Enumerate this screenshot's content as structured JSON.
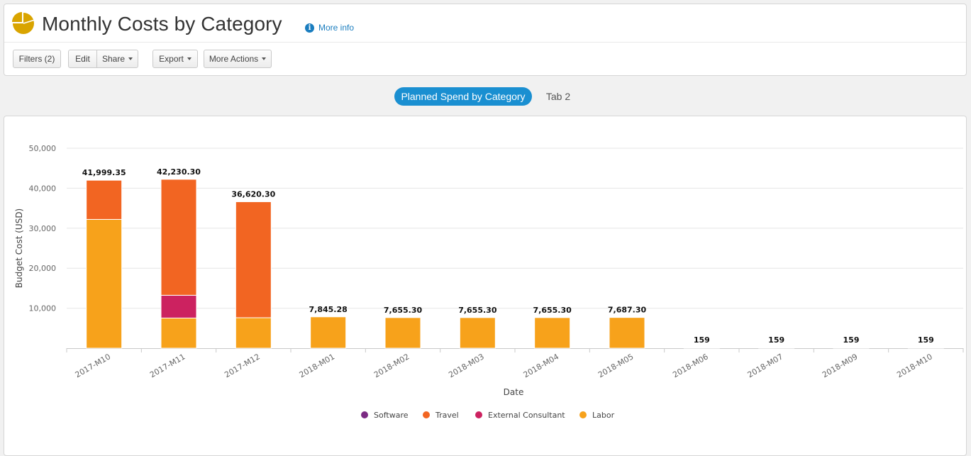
{
  "header": {
    "title": "Monthly Costs by Category",
    "more_info": "More info"
  },
  "toolbar": {
    "filters_label": "Filters (2)",
    "edit_label": "Edit",
    "share_label": "Share",
    "export_label": "Export",
    "more_actions_label": "More Actions"
  },
  "tabs": [
    {
      "label": "Planned Spend by Category",
      "active": true
    },
    {
      "label": "Tab 2",
      "active": false
    }
  ],
  "colors": {
    "Software": "#7b2a83",
    "Travel": "#f26522",
    "External Consultant": "#cc2260",
    "Labor": "#f7a21b",
    "accent": "#1a8fd1"
  },
  "chart_data": {
    "type": "bar",
    "stacked": true,
    "xlabel": "Date",
    "ylabel": "Budget Cost (USD)",
    "ylim": [
      0,
      50000
    ],
    "yticks": [
      10000,
      20000,
      30000,
      40000,
      50000
    ],
    "ytick_labels": [
      "10,000",
      "20,000",
      "30,000",
      "40,000",
      "50,000"
    ],
    "grid": true,
    "legend_position": "bottom",
    "categories": [
      "2017-M10",
      "2017-M11",
      "2017-M12",
      "2018-M01",
      "2018-M02",
      "2018-M03",
      "2018-M04",
      "2018-M05",
      "2018-M06",
      "2018-M07",
      "2018-M09",
      "2018-M10"
    ],
    "series": [
      {
        "name": "Software",
        "values": [
          0,
          0,
          0,
          0,
          0,
          0,
          0,
          0,
          0,
          0,
          0,
          0
        ]
      },
      {
        "name": "Travel",
        "values": [
          9799.35,
          29000,
          29000,
          0,
          0,
          0,
          0,
          0,
          0,
          0,
          0,
          0
        ]
      },
      {
        "name": "External Consultant",
        "values": [
          0,
          5690,
          0,
          0,
          0,
          0,
          0,
          0,
          0,
          0,
          0,
          0
        ]
      },
      {
        "name": "Labor",
        "values": [
          32200,
          7540.3,
          7620.3,
          7845.28,
          7655.3,
          7655.3,
          7655.3,
          7687.3,
          159,
          159,
          159,
          159
        ]
      }
    ],
    "totals": [
      41999.35,
      42230.3,
      36620.3,
      7845.28,
      7655.3,
      7655.3,
      7655.3,
      7687.3,
      159,
      159,
      159,
      159
    ],
    "total_labels": [
      "41,999.35",
      "42,230.30",
      "36,620.30",
      "7,845.28",
      "7,655.30",
      "7,655.30",
      "7,655.30",
      "7,687.30",
      "159",
      "159",
      "159",
      "159"
    ],
    "legend": [
      "Software",
      "Travel",
      "External Consultant",
      "Labor"
    ]
  }
}
